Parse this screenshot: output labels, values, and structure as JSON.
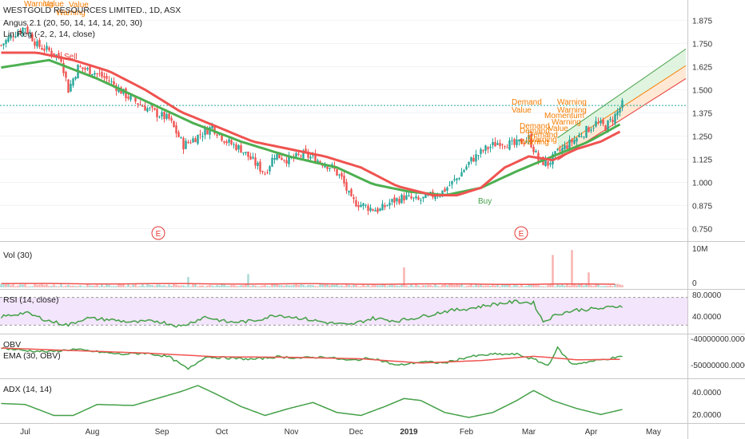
{
  "header": {
    "title": "WESTGOLD RESOURCES LIMITED., 1D, ASX",
    "indicators": [
      "Angus 2.1 (20, 50, 14, 14, 14, 20, 30)",
      "Lin Reg (-2, 2, 14, close)"
    ]
  },
  "colors": {
    "up": "#26a69a",
    "down": "#ef5350",
    "ma_red": "#ef5350",
    "ma_green": "#4caf50",
    "rsi_line": "#43a047",
    "rsi_band": "#f3e5fb",
    "annotation": "#f57c00",
    "ema_line": "#ef5350",
    "channel_fill_upper": "#d6f0d6",
    "channel_fill_lower": "#ffe4cc"
  },
  "chart_data": [
    {
      "type": "candlestick",
      "title": "WESTGOLD RESOURCES LIMITED., 1D, ASX",
      "ylim": [
        0.7,
        1.95
      ],
      "ytick_labels": [
        "1.875",
        "1.750",
        "1.625",
        "1.500",
        "1.375",
        "1.250",
        "1.125",
        "1.000",
        "0.875",
        "0.750"
      ],
      "ytick_values": [
        1.875,
        1.75,
        1.625,
        1.5,
        1.375,
        1.25,
        1.125,
        1.0,
        0.875,
        0.75
      ],
      "xtick_labels": [
        "Jul",
        "Aug",
        "Sep",
        "Oct",
        "Nov",
        "Dec",
        "2019",
        "Feb",
        "Mar",
        "Apr",
        "May"
      ],
      "last_price_line": 1.415,
      "close_trend": [
        [
          0,
          1.74
        ],
        [
          5,
          1.8
        ],
        [
          10,
          1.84
        ],
        [
          15,
          1.74
        ],
        [
          20,
          1.71
        ],
        [
          25,
          1.67
        ],
        [
          28,
          1.5
        ],
        [
          32,
          1.62
        ],
        [
          38,
          1.6
        ],
        [
          45,
          1.55
        ],
        [
          52,
          1.47
        ],
        [
          58,
          1.42
        ],
        [
          65,
          1.37
        ],
        [
          70,
          1.34
        ],
        [
          76,
          1.2
        ],
        [
          82,
          1.25
        ],
        [
          88,
          1.3
        ],
        [
          94,
          1.22
        ],
        [
          100,
          1.18
        ],
        [
          106,
          1.1
        ],
        [
          110,
          1.05
        ],
        [
          114,
          1.15
        ],
        [
          120,
          1.12
        ],
        [
          126,
          1.15
        ],
        [
          132,
          1.12
        ],
        [
          138,
          1.08
        ],
        [
          142,
          1.02
        ],
        [
          146,
          0.9
        ],
        [
          150,
          0.88
        ],
        [
          154,
          0.86
        ],
        [
          158,
          0.85
        ],
        [
          162,
          0.89
        ],
        [
          168,
          0.92
        ],
        [
          174,
          0.9
        ],
        [
          178,
          0.92
        ],
        [
          184,
          0.95
        ],
        [
          190,
          1.02
        ],
        [
          196,
          1.12
        ],
        [
          202,
          1.18
        ],
        [
          208,
          1.22
        ],
        [
          214,
          1.2
        ],
        [
          220,
          1.24
        ],
        [
          224,
          1.12
        ],
        [
          228,
          1.1
        ],
        [
          232,
          1.16
        ],
        [
          236,
          1.2
        ],
        [
          240,
          1.24
        ],
        [
          244,
          1.28
        ],
        [
          248,
          1.32
        ],
        [
          252,
          1.3
        ],
        [
          256,
          1.36
        ],
        [
          259,
          1.42
        ]
      ],
      "series": [
        {
          "points": [
            [
              0,
              1.62
            ],
            [
              20,
              1.66
            ],
            [
              40,
              1.56
            ],
            [
              60,
              1.44
            ],
            [
              80,
              1.32
            ],
            [
              100,
              1.22
            ],
            [
              120,
              1.14
            ],
            [
              140,
              1.08
            ],
            [
              155,
              0.99
            ],
            [
              170,
              0.95
            ],
            [
              185,
              0.93
            ],
            [
              200,
              0.97
            ],
            [
              215,
              1.06
            ],
            [
              230,
              1.14
            ],
            [
              245,
              1.22
            ],
            [
              259,
              1.32
            ]
          ]
        },
        {
          "points": [
            [
              0,
              1.7
            ],
            [
              15,
              1.7
            ],
            [
              30,
              1.66
            ],
            [
              45,
              1.6
            ],
            [
              60,
              1.5
            ],
            [
              75,
              1.38
            ],
            [
              90,
              1.3
            ],
            [
              105,
              1.22
            ],
            [
              120,
              1.18
            ],
            [
              135,
              1.14
            ],
            [
              150,
              1.08
            ],
            [
              165,
              0.98
            ],
            [
              180,
              0.93
            ],
            [
              190,
              0.93
            ],
            [
              200,
              0.97
            ],
            [
              210,
              1.08
            ],
            [
              220,
              1.14
            ],
            [
              230,
              1.12
            ],
            [
              240,
              1.18
            ],
            [
              250,
              1.22
            ],
            [
              259,
              1.28
            ]
          ]
        }
      ],
      "annotations": {
        "orange": [
          "Warning",
          "Value",
          "Value",
          "Warning",
          "Demand",
          "Warning",
          "Value",
          "Warning",
          "Momentum",
          "Demand",
          "Warning",
          "Demand",
          "Warning",
          "Value",
          "Demand",
          "Warning"
        ],
        "red": [
          "Sell"
        ],
        "green": [
          "Buy"
        ],
        "earnings": [
          "E",
          "E"
        ]
      }
    },
    {
      "type": "bar",
      "title": "Vol (30)",
      "ytick_labels": [
        "10M",
        "0"
      ],
      "ylim": [
        0,
        10000000
      ],
      "spikes": [
        [
          78,
          2500000
        ],
        [
          103,
          3200000
        ],
        [
          168,
          4800000
        ],
        [
          230,
          7800000
        ],
        [
          238,
          9000000
        ],
        [
          245,
          3600000
        ]
      ]
    },
    {
      "type": "line",
      "title": "RSI (14, close)",
      "ylim": [
        30,
        90
      ],
      "band": [
        40,
        80
      ],
      "ytick_labels": [
        "80.0000",
        "40.0000"
      ],
      "values": [
        [
          0,
          52
        ],
        [
          10,
          58
        ],
        [
          20,
          46
        ],
        [
          28,
          40
        ],
        [
          35,
          50
        ],
        [
          45,
          48
        ],
        [
          55,
          44
        ],
        [
          65,
          46
        ],
        [
          75,
          38
        ],
        [
          85,
          52
        ],
        [
          95,
          44
        ],
        [
          105,
          46
        ],
        [
          115,
          55
        ],
        [
          125,
          50
        ],
        [
          135,
          44
        ],
        [
          145,
          40
        ],
        [
          155,
          50
        ],
        [
          165,
          46
        ],
        [
          175,
          52
        ],
        [
          185,
          60
        ],
        [
          195,
          64
        ],
        [
          205,
          70
        ],
        [
          215,
          74
        ],
        [
          222,
          72
        ],
        [
          226,
          45
        ],
        [
          232,
          56
        ],
        [
          240,
          62
        ],
        [
          250,
          64
        ],
        [
          259,
          68
        ]
      ]
    },
    {
      "type": "line",
      "title": "OBV",
      "subtitle": "EMA (30, OBV)",
      "ytick_labels": [
        "-40000000.0000",
        "-50000000.0000"
      ],
      "ylim": [
        -53000000,
        -37000000
      ],
      "series": [
        {
          "name": "OBV",
          "values": [
            [
              0,
              -41500000
            ],
            [
              10,
              -42500000
            ],
            [
              20,
              -43000000
            ],
            [
              30,
              -42000000
            ],
            [
              40,
              -43000000
            ],
            [
              50,
              -44000000
            ],
            [
              60,
              -43500000
            ],
            [
              70,
              -45000000
            ],
            [
              78,
              -50000000
            ],
            [
              85,
              -45000000
            ],
            [
              95,
              -45500000
            ],
            [
              105,
              -46000000
            ],
            [
              115,
              -45000000
            ],
            [
              125,
              -45500000
            ],
            [
              135,
              -45000000
            ],
            [
              145,
              -46500000
            ],
            [
              155,
              -45500000
            ],
            [
              165,
              -48500000
            ],
            [
              175,
              -47000000
            ],
            [
              185,
              -47500000
            ],
            [
              195,
              -45000000
            ],
            [
              205,
              -44000000
            ],
            [
              215,
              -44000000
            ],
            [
              222,
              -46000000
            ],
            [
              228,
              -48500000
            ],
            [
              232,
              -41500000
            ],
            [
              238,
              -48000000
            ],
            [
              245,
              -47000000
            ],
            [
              255,
              -45500000
            ],
            [
              259,
              -45000000
            ]
          ]
        },
        {
          "name": "EMA (30, OBV)",
          "values": [
            [
              0,
              -41500000
            ],
            [
              30,
              -42500000
            ],
            [
              60,
              -43500000
            ],
            [
              90,
              -45000000
            ],
            [
              120,
              -45200000
            ],
            [
              150,
              -45800000
            ],
            [
              175,
              -47500000
            ],
            [
              200,
              -46500000
            ],
            [
              222,
              -44800000
            ],
            [
              240,
              -46200000
            ],
            [
              259,
              -46000000
            ]
          ]
        }
      ]
    },
    {
      "type": "line",
      "title": "ADX (14, 14)",
      "ylim": [
        15,
        55
      ],
      "ytick_labels": [
        "40.0000",
        "20.0000"
      ],
      "values": [
        [
          0,
          33
        ],
        [
          10,
          32
        ],
        [
          22,
          21
        ],
        [
          30,
          21
        ],
        [
          40,
          32
        ],
        [
          55,
          31
        ],
        [
          65,
          38
        ],
        [
          75,
          45
        ],
        [
          82,
          51
        ],
        [
          90,
          42
        ],
        [
          100,
          30
        ],
        [
          110,
          21
        ],
        [
          120,
          28
        ],
        [
          130,
          34
        ],
        [
          140,
          24
        ],
        [
          150,
          21
        ],
        [
          160,
          30
        ],
        [
          168,
          38
        ],
        [
          175,
          36
        ],
        [
          185,
          24
        ],
        [
          195,
          19
        ],
        [
          205,
          24
        ],
        [
          215,
          36
        ],
        [
          222,
          46
        ],
        [
          230,
          36
        ],
        [
          240,
          28
        ],
        [
          250,
          22
        ],
        [
          259,
          27
        ]
      ]
    }
  ]
}
